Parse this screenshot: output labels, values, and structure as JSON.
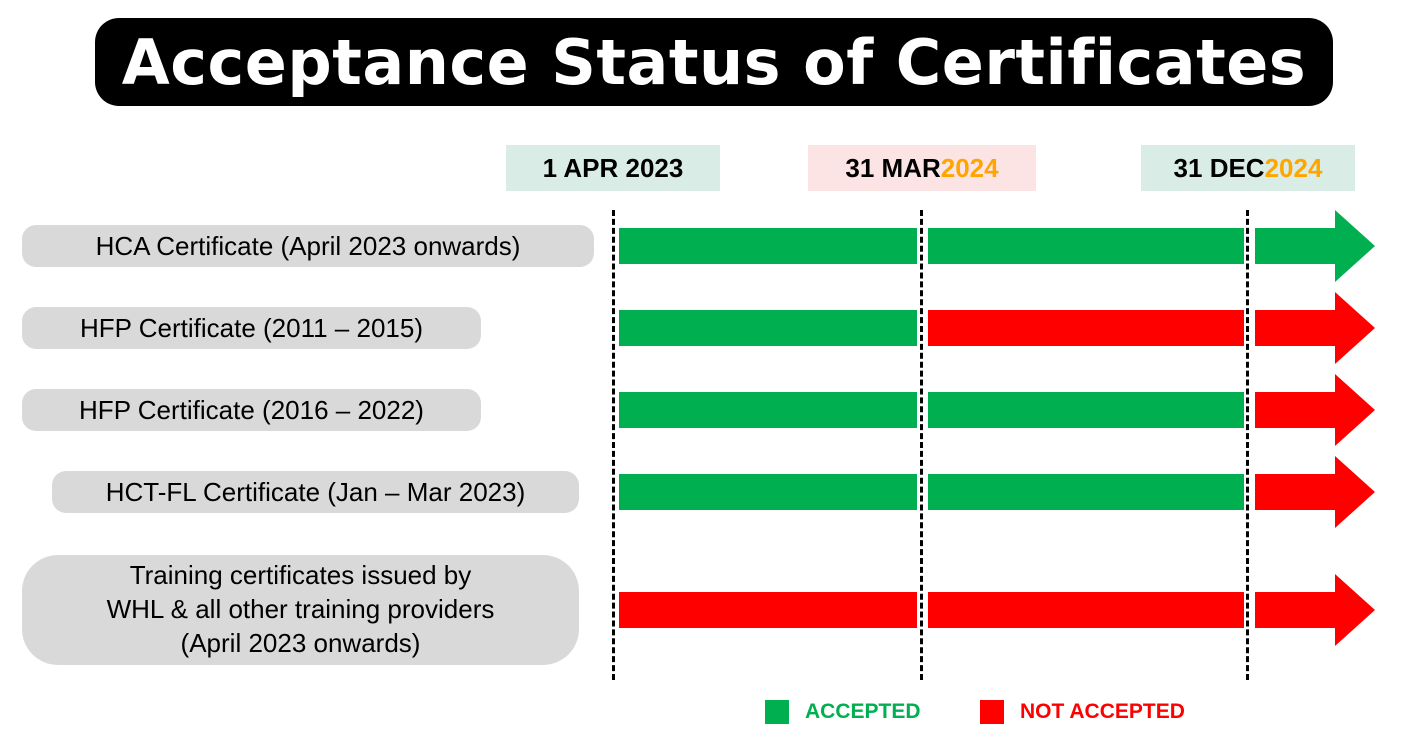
{
  "title": "Acceptance Status of Certificates",
  "colors": {
    "accepted": "#00b050",
    "not_accepted": "#ff0000",
    "year_highlight": "#ffa500"
  },
  "dates": [
    {
      "prefix": "1 APR 2023",
      "year": "",
      "bg": "#d9ede6"
    },
    {
      "prefix": "31 MAR ",
      "year": "2024",
      "bg": "#fde4e4"
    },
    {
      "prefix": "31 DEC ",
      "year": "2024",
      "bg": "#d9ede6"
    }
  ],
  "rows": [
    {
      "lines": [
        "HCA Certificate (April 2023 onwards)"
      ],
      "status": [
        "accepted",
        "accepted",
        "accepted"
      ]
    },
    {
      "lines": [
        "HFP Certificate (2011 – 2015)"
      ],
      "status": [
        "accepted",
        "not_accepted",
        "not_accepted"
      ]
    },
    {
      "lines": [
        "HFP Certificate (2016 – 2022)"
      ],
      "status": [
        "accepted",
        "accepted",
        "not_accepted"
      ]
    },
    {
      "lines": [
        "HCT-FL Certificate (Jan – Mar 2023)"
      ],
      "status": [
        "accepted",
        "accepted",
        "not_accepted"
      ]
    },
    {
      "lines": [
        "Training certificates issued by",
        "WHL & all other training providers",
        "(April 2023 onwards)"
      ],
      "status": [
        "not_accepted",
        "not_accepted",
        "not_accepted"
      ]
    }
  ],
  "legend": {
    "accepted": "ACCEPTED",
    "not_accepted": "NOT ACCEPTED"
  }
}
